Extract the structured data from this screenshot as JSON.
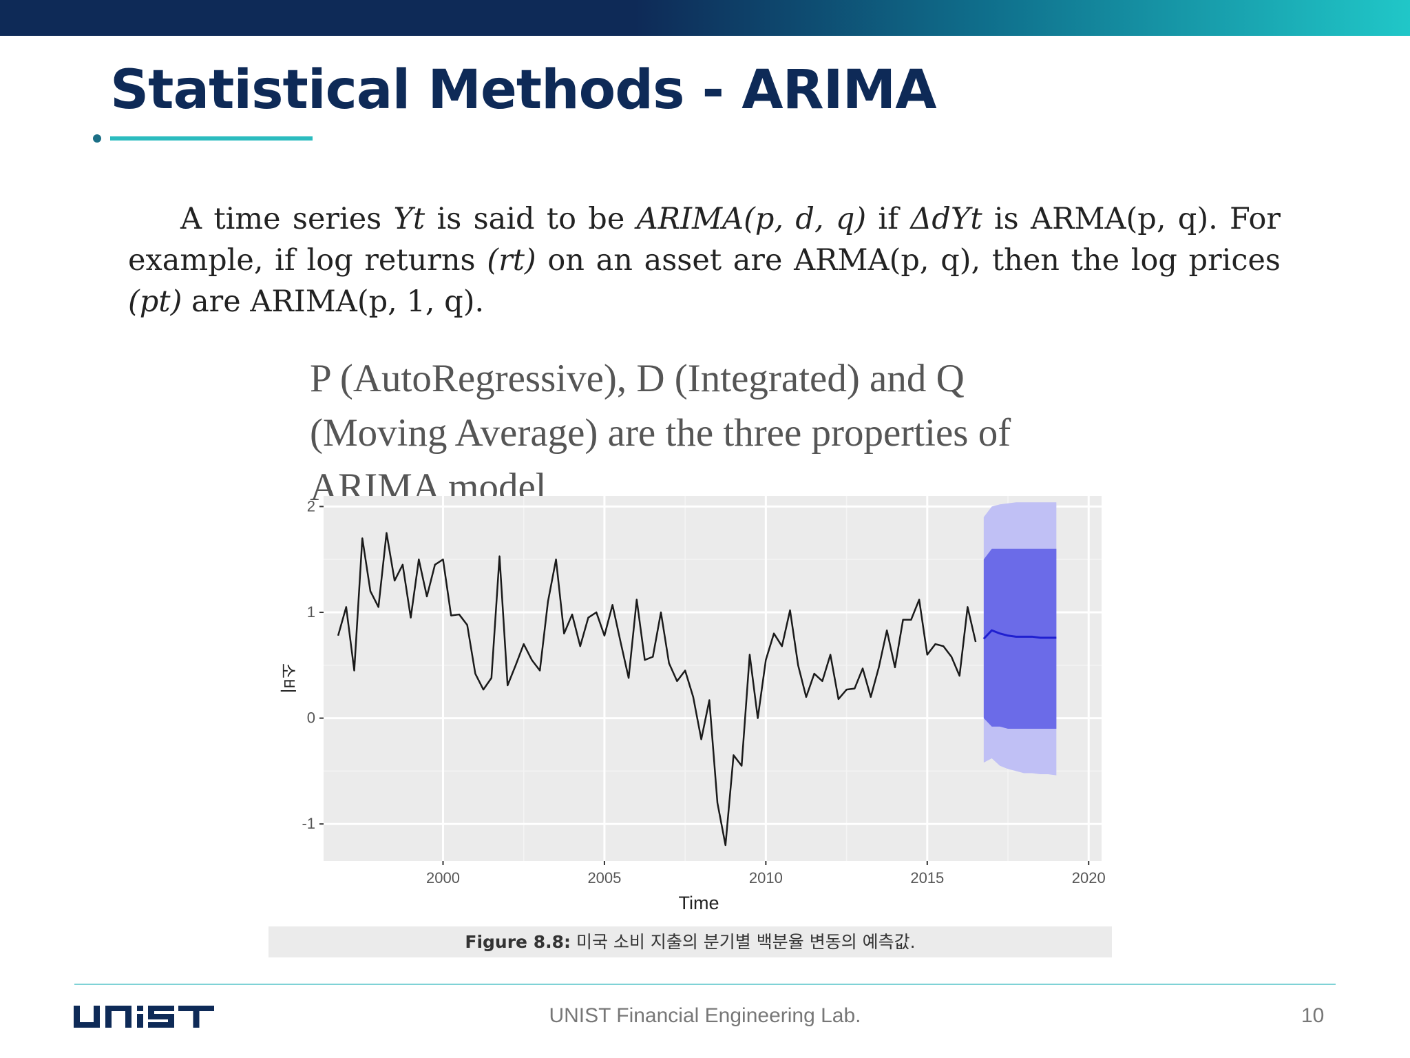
{
  "slide": {
    "title": "Statistical Methods - ARIMA",
    "paragraph": {
      "seg1": "A time series ",
      "seg2": " is said to be ",
      "seg3": " if ",
      "seg4": " is ARMA(p, q). For example, if log returns ",
      "seg5": " on an asset are ARMA(p, q), then the log prices ",
      "seg6": " are ARIMA(p, 1, q).",
      "yt": "Yt",
      "arima_pdq": "ARIMA(p, d, q)",
      "delta": "ΔdYt",
      "rt": "(rt)",
      "pt": "(pt)"
    },
    "callout": "P (AutoRegressive), D (Integrated) and Q (Moving Average) are the three properties of ARIMA model",
    "caption_label": "Figure 8.8:",
    "caption_text": " 미국 소비 지출의 분기별 백분율 변동의 예측값.",
    "footer": "UNIST Financial Engineering Lab.",
    "page_number": "10",
    "logo_text": "UNIST"
  },
  "colors": {
    "title": "#0e2a57",
    "accent": "#2bbcbf",
    "line": "#1a1a1a",
    "forecast_80": "#6b6be8",
    "forecast_95": "#c0c0f5",
    "forecast_mean": "#1f1fd0"
  },
  "chart_data": {
    "type": "line",
    "xlabel": "Time",
    "ylabel": "소비",
    "xlim": [
      1996.3,
      2020.4
    ],
    "ylim": [
      -1.35,
      2.1
    ],
    "x_ticks": [
      2000,
      2005,
      2010,
      2015,
      2020
    ],
    "x_tick_labels": [
      "2000",
      "2005",
      "2010",
      "2015",
      "2020"
    ],
    "y_ticks": [
      -1,
      0,
      1,
      2
    ],
    "y_tick_labels": [
      "-1",
      "0",
      "1",
      "2"
    ],
    "grid": true,
    "series": [
      {
        "start": 1996.75,
        "step": 0.25,
        "values": [
          0.78,
          1.05,
          0.45,
          1.7,
          1.2,
          1.05,
          1.75,
          1.3,
          1.45,
          0.95,
          1.5,
          1.15,
          1.45,
          1.5,
          0.97,
          0.98,
          0.88,
          0.42,
          0.27,
          0.38,
          1.53,
          0.31,
          0.5,
          0.7,
          0.55,
          0.45,
          1.1,
          1.5,
          0.8,
          0.98,
          0.68,
          0.95,
          1.0,
          0.78,
          1.07,
          0.72,
          0.38,
          1.12,
          0.55,
          0.58,
          1.0,
          0.52,
          0.35,
          0.45,
          0.2,
          -0.2,
          0.17,
          -0.8,
          -1.2,
          -0.35,
          -0.45,
          0.6,
          0.0,
          0.55,
          0.8,
          0.68,
          1.02,
          0.5,
          0.2,
          0.42,
          0.35,
          0.6,
          0.18,
          0.27,
          0.28,
          0.47,
          0.2,
          0.48,
          0.83,
          0.48,
          0.93,
          0.93,
          1.12,
          0.6,
          0.7,
          0.68,
          0.58,
          0.4,
          1.05,
          0.72
        ]
      }
    ],
    "forecast": {
      "x": [
        2016.75,
        2017.0,
        2017.25,
        2017.5,
        2017.75,
        2018.0,
        2018.25,
        2018.5,
        2018.75,
        2019.0
      ],
      "mean": [
        0.75,
        0.83,
        0.8,
        0.78,
        0.77,
        0.77,
        0.77,
        0.76,
        0.76,
        0.76
      ],
      "lo80": [
        0.0,
        -0.08,
        -0.08,
        -0.1,
        -0.1,
        -0.1,
        -0.1,
        -0.1,
        -0.1,
        -0.1
      ],
      "hi80": [
        1.5,
        1.6,
        1.6,
        1.6,
        1.6,
        1.6,
        1.6,
        1.6,
        1.6,
        1.6
      ],
      "lo95": [
        -0.42,
        -0.38,
        -0.45,
        -0.48,
        -0.5,
        -0.52,
        -0.52,
        -0.53,
        -0.53,
        -0.54
      ],
      "hi95": [
        1.9,
        2.0,
        2.02,
        2.03,
        2.04,
        2.04,
        2.04,
        2.04,
        2.04,
        2.04
      ]
    }
  }
}
